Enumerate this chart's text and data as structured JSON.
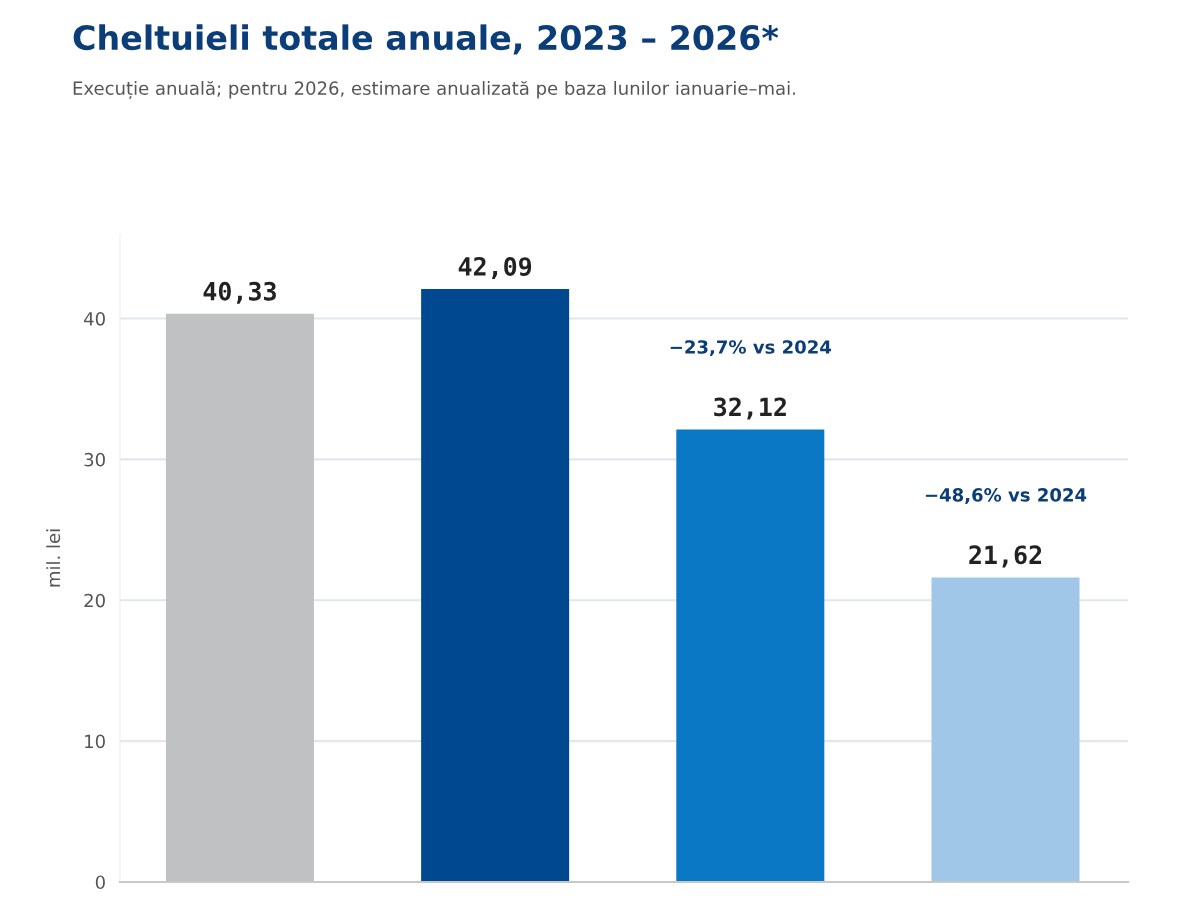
{
  "chart_data": {
    "type": "bar",
    "title": "Cheltuieli totale anuale, 2023 – 2026*",
    "subtitle": "Execuție anuală; pentru 2026, estimare anualizată pe baza lunilor ianuarie–mai.",
    "ylabel": "mil. lei",
    "categories": [
      null,
      null,
      null,
      null
    ],
    "values": [
      40.33,
      42.09,
      32.12,
      21.62
    ],
    "colors": [
      "#bfc1c3",
      "#004890",
      "#0a78c4",
      "#a0c6e8"
    ],
    "value_labels": [
      "40,33",
      "42,09",
      "32,12",
      "21,62"
    ],
    "annotations": [
      "−23,7% vs 2024",
      "−48,6% vs 2024"
    ],
    "ylim": [
      0,
      46
    ],
    "yticks": [
      0,
      10,
      20,
      30,
      40
    ],
    "grid": "y"
  }
}
